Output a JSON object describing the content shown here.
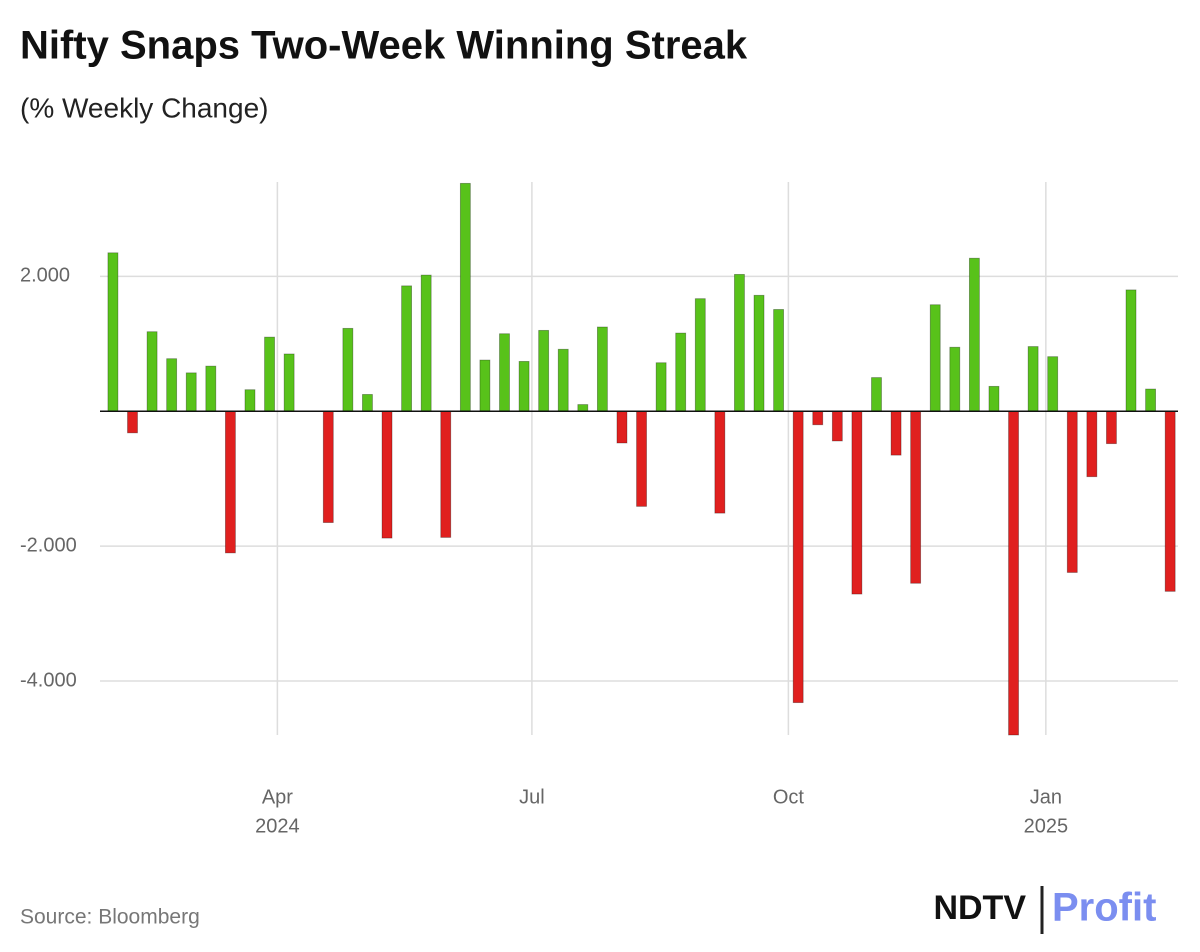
{
  "chart_data": {
    "type": "bar",
    "title": "Nifty Snaps Two-Week Winning Streak",
    "subtitle": "(% Weekly Change)",
    "categories": [
      null,
      null,
      null,
      null,
      null,
      null,
      null,
      null,
      null,
      null,
      null,
      null,
      null,
      null,
      null,
      null,
      null,
      null,
      null,
      null,
      null,
      null,
      null,
      null,
      null,
      null,
      null,
      null,
      null,
      null,
      null,
      null,
      null,
      null,
      null,
      null,
      null,
      null,
      null,
      null,
      null,
      null,
      null,
      null,
      null,
      null,
      null,
      null,
      null,
      null,
      null,
      null,
      null,
      null,
      null
    ],
    "values": [
      2.35,
      -0.32,
      1.18,
      0.78,
      0.57,
      0.67,
      -2.1,
      0.32,
      1.1,
      0.85,
      null,
      -1.65,
      1.23,
      0.25,
      -1.88,
      1.86,
      2.02,
      -1.87,
      3.38,
      0.76,
      1.15,
      0.74,
      1.2,
      0.92,
      0.1,
      1.25,
      -0.47,
      -1.41,
      0.72,
      1.16,
      1.67,
      -1.51,
      2.03,
      1.72,
      1.51,
      -4.32,
      -0.2,
      -0.44,
      -2.71,
      0.5,
      -0.65,
      -2.55,
      1.58,
      0.95,
      2.27,
      0.37,
      -4.8,
      0.96,
      0.81,
      -2.39,
      -0.97,
      -0.48,
      1.8,
      0.33,
      -2.67
    ],
    "positive_color": "#58c21a",
    "negative_color": "#e0201f",
    "ylim": [
      -4.8,
      3.4
    ],
    "yticks": [
      {
        "value": 2,
        "label": "2.000"
      },
      {
        "value": -2,
        "label": "-2.000"
      },
      {
        "value": -4,
        "label": "-4.000"
      }
    ],
    "xlim": [
      -0.66,
      54.4
    ],
    "xticks": [
      {
        "value": 8.4,
        "label": "Apr"
      },
      {
        "value": 21.4,
        "label": "Jul"
      },
      {
        "value": 34.5,
        "label": "Oct"
      },
      {
        "value": 47.65,
        "label": "Jan"
      }
    ],
    "x_year_labels": [
      {
        "value": 8.4,
        "label": "2024"
      },
      {
        "value": 47.65,
        "label": "2025"
      }
    ],
    "grid": true
  },
  "source": "Source: Bloomberg",
  "logo": {
    "brand": "NDTV",
    "product": "Profit"
  }
}
